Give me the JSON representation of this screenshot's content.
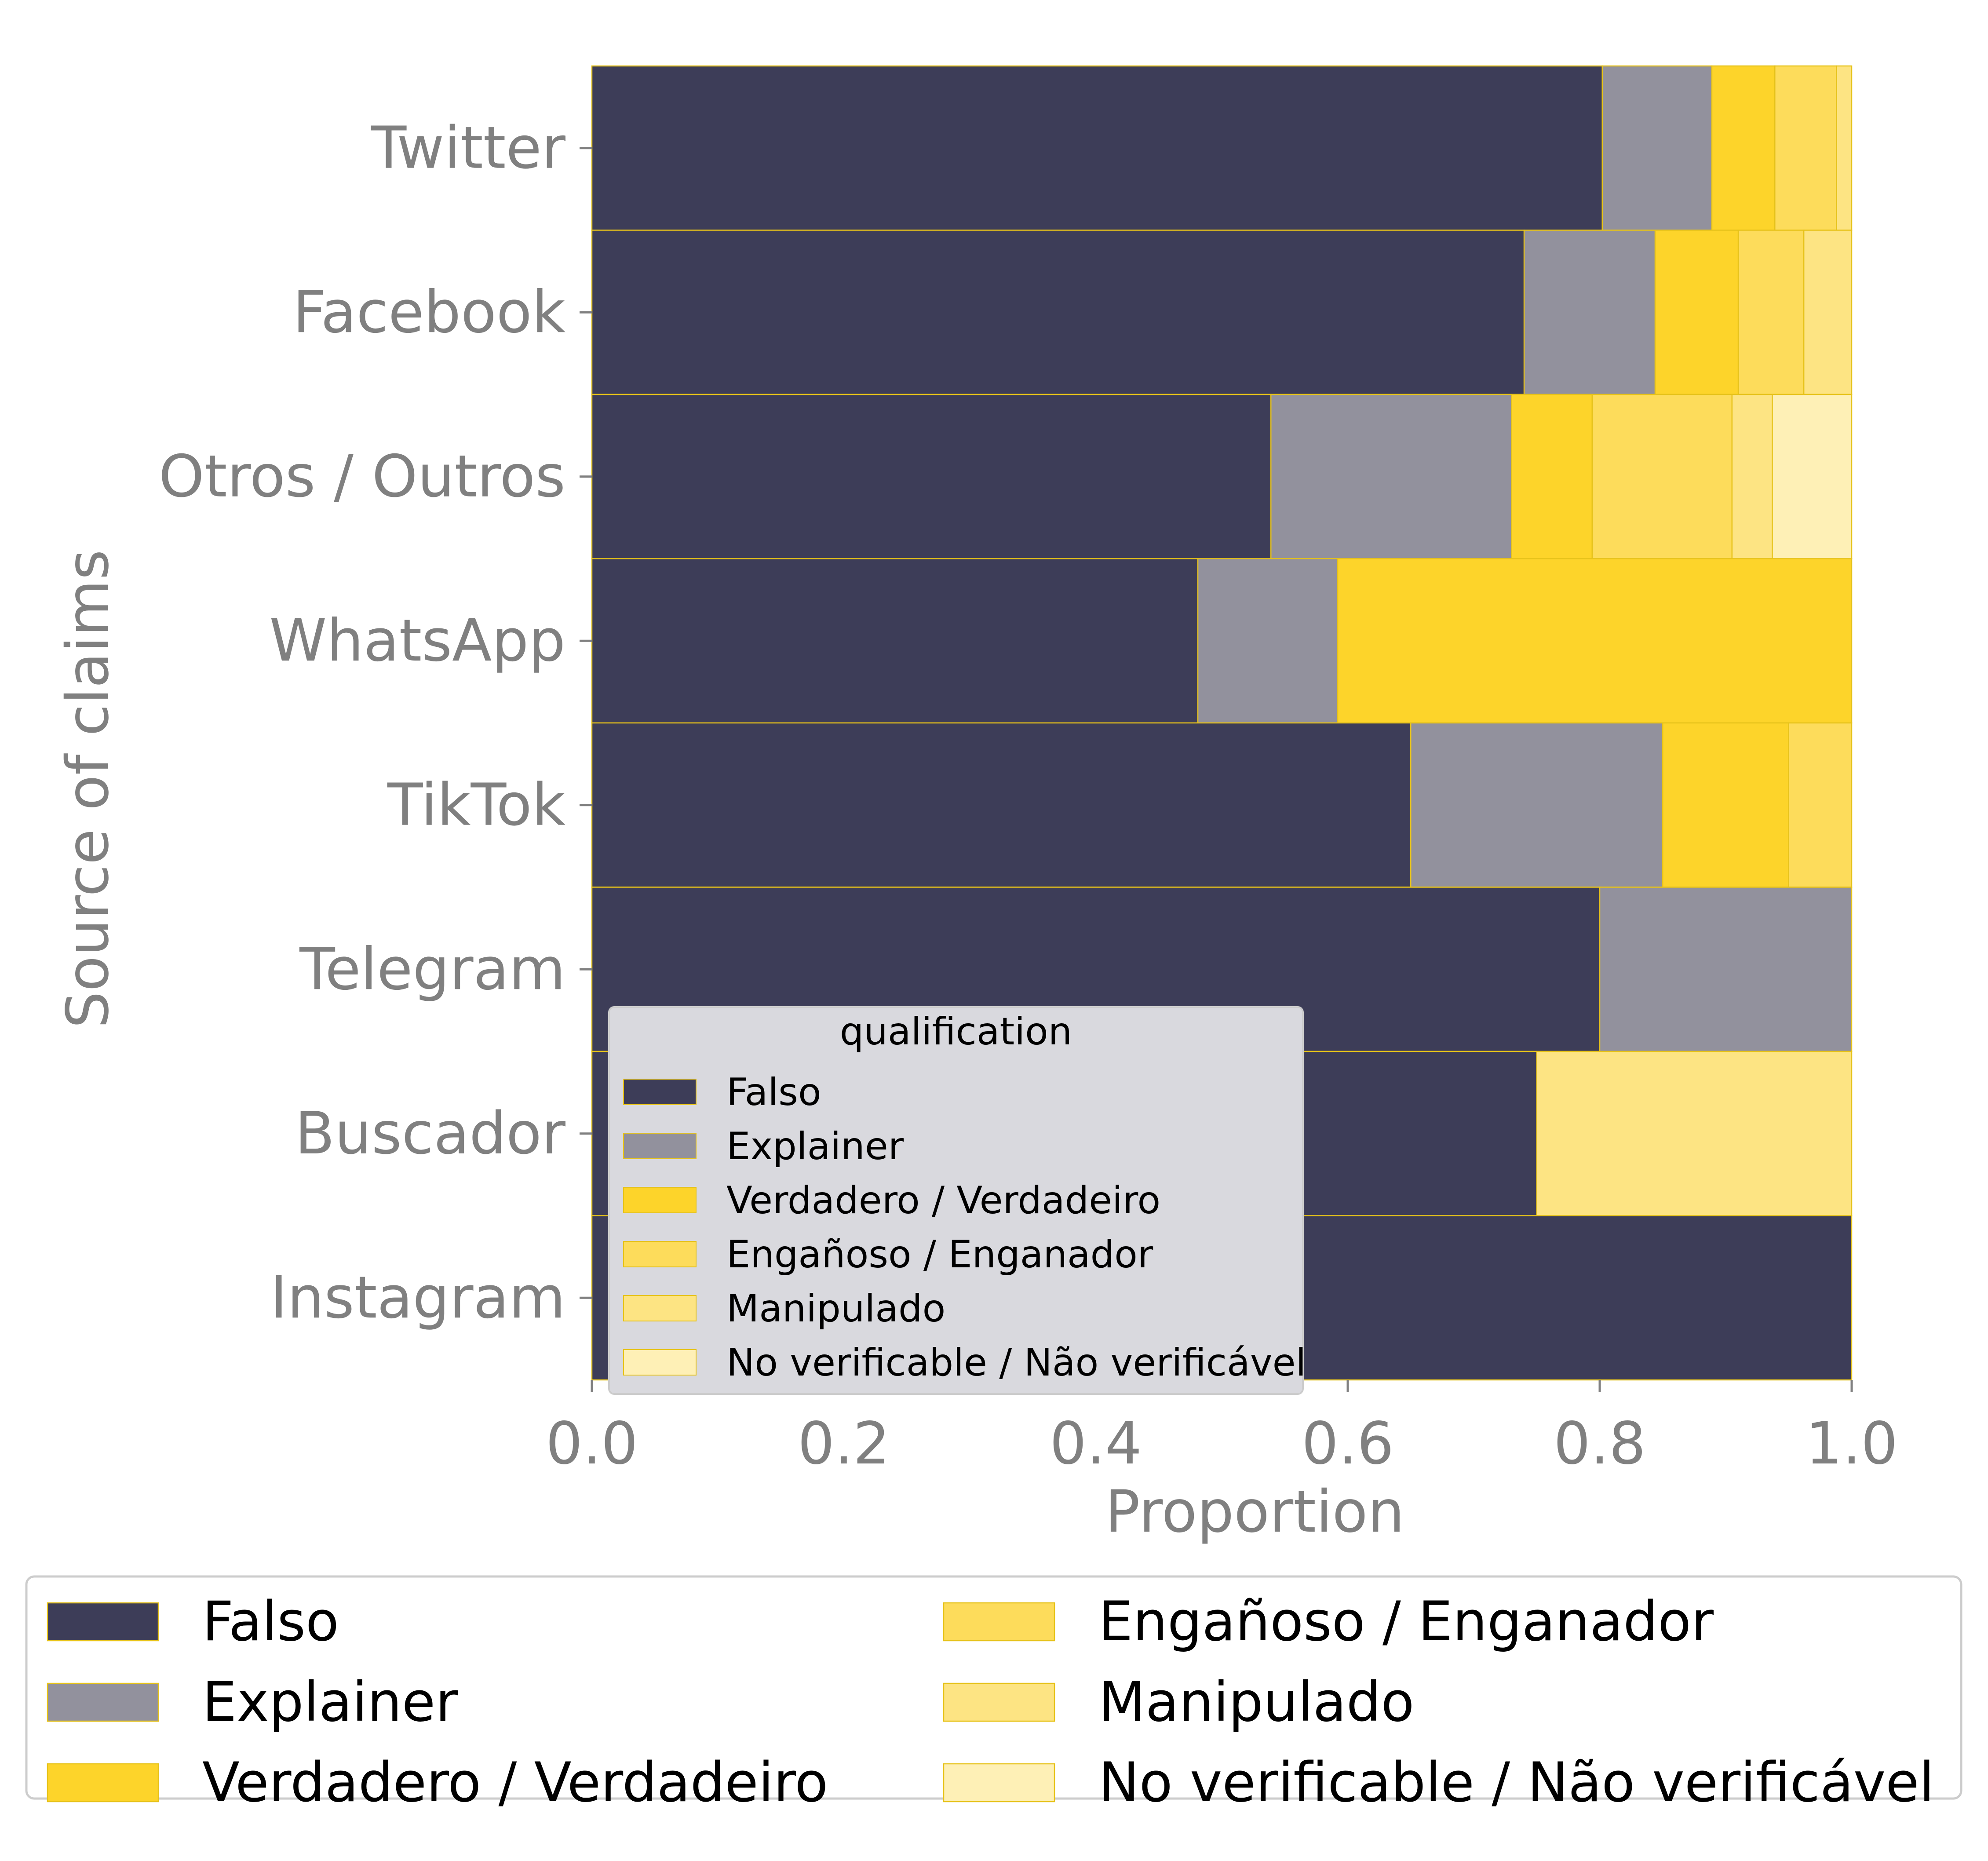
{
  "chart_data": {
    "type": "bar",
    "orientation": "horizontal",
    "stacked": true,
    "xlabel": "Proportion",
    "ylabel": "Source of claims",
    "xlim": [
      0,
      1
    ],
    "xticks": [
      "0.0",
      "0.2",
      "0.4",
      "0.6",
      "0.8",
      "1.0"
    ],
    "xtick_values": [
      0,
      0.2,
      0.4,
      0.6,
      0.8,
      1.0
    ],
    "categories": [
      "Twitter",
      "Facebook",
      "Otros / Outros",
      "WhatsApp",
      "TikTok",
      "Telegram",
      "Buscador",
      "Instagram"
    ],
    "series": [
      {
        "name": "Falso",
        "color": "#3d3d58",
        "values": [
          0.802,
          0.74,
          0.539,
          0.481,
          0.65,
          0.8,
          0.75,
          1.0
        ]
      },
      {
        "name": "Explainer",
        "color": "#92919d",
        "values": [
          0.087,
          0.104,
          0.191,
          0.111,
          0.2,
          0.2,
          0.0,
          0.0
        ]
      },
      {
        "name": "Verdadero / Verdadeiro",
        "color": "#fdd42a",
        "values": [
          0.05,
          0.066,
          0.064,
          0.408,
          0.1,
          0.0,
          0.0,
          0.0
        ]
      },
      {
        "name": "Engañoso / Enganador",
        "color": "#fddc5b",
        "values": [
          0.049,
          0.052,
          0.111,
          0.0,
          0.05,
          0.0,
          0.0,
          0.0
        ]
      },
      {
        "name": "Manipulado",
        "color": "#fde483",
        "values": [
          0.012,
          0.038,
          0.032,
          0.0,
          0.0,
          0.0,
          0.25,
          0.0
        ]
      },
      {
        "name": "No verificable / Não verificável",
        "color": "#fef0b6",
        "values": [
          0.0,
          0.0,
          0.063,
          0.0,
          0.0,
          0.0,
          0.0,
          0.0
        ]
      }
    ],
    "inner_legend": {
      "title": "qualification",
      "placement": "lower-left inside plot"
    },
    "outer_legend": {
      "placement": "bottom, 2 columns"
    },
    "bar_edge_color": "#e6c21a",
    "grid": false
  }
}
